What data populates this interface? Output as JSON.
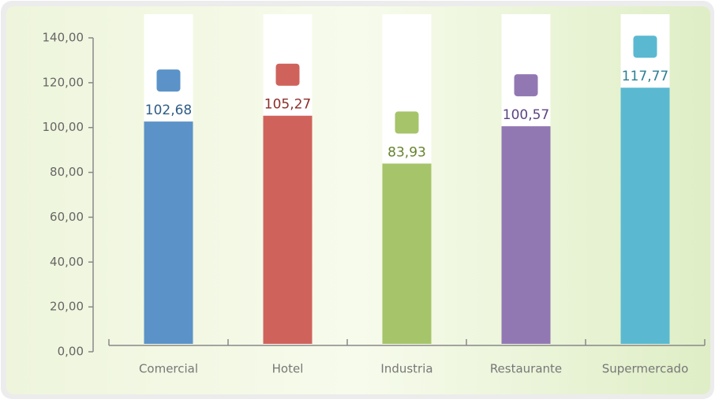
{
  "chart_data": {
    "type": "bar",
    "categories": [
      "Comercial",
      "Hotel",
      "Industria",
      "Restaurante",
      "Supermercado"
    ],
    "values": [
      102.68,
      105.27,
      83.93,
      100.57,
      117.77
    ],
    "value_labels": [
      "102,68",
      "105,27",
      "83,93",
      "100,57",
      "117,77"
    ],
    "colors": [
      "#5b93c8",
      "#cf635c",
      "#a6c46a",
      "#9278b3",
      "#5ab9d1"
    ],
    "label_colors": [
      "#2e5c86",
      "#8a2f2a",
      "#66822e",
      "#5c4580",
      "#2c7f95"
    ],
    "ylim": [
      0,
      140
    ],
    "yticks": [
      {
        "value": 0,
        "label": "0,00"
      },
      {
        "value": 20,
        "label": "20,00"
      },
      {
        "value": 40,
        "label": "40,00"
      },
      {
        "value": 60,
        "label": "60,00"
      },
      {
        "value": 80,
        "label": "80,00"
      },
      {
        "value": 100,
        "label": "100,00"
      },
      {
        "value": 120,
        "label": "120,00"
      },
      {
        "value": 140,
        "label": "140,00"
      }
    ]
  }
}
